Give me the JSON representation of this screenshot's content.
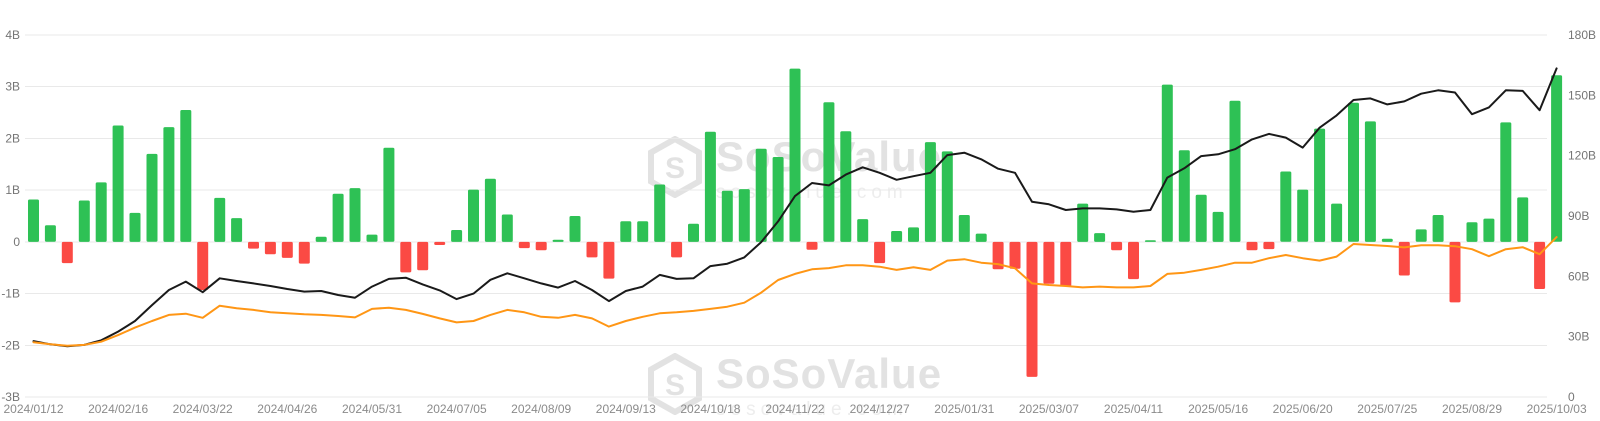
{
  "watermark": {
    "brand": "SoSoValue",
    "domain": "sosovalue.com"
  },
  "chart_data": {
    "type": "bar",
    "title": "",
    "xlabel": "",
    "ylabel": "",
    "grid": true,
    "legend_position": "none",
    "x_tick_every": 5,
    "x_tick_labels": [
      "2024/01/12",
      "2024/02/16",
      "2024/03/22",
      "2024/04/26",
      "2024/05/31",
      "2024/07/05",
      "2024/08/09",
      "2024/09/13",
      "2024/10/18",
      "2024/11/22",
      "2024/12/27",
      "2025/01/31",
      "2025/03/07",
      "2025/04/11",
      "2025/05/16",
      "2025/06/20",
      "2025/07/25",
      "2025/08/29",
      "2025/10/03"
    ],
    "left_axis": {
      "min": -3,
      "max": 4,
      "tick_values": [
        4,
        3,
        2,
        1,
        0,
        -1,
        -2,
        -3
      ],
      "tick_labels": [
        "4B",
        "3B",
        "2B",
        "1B",
        "0",
        "-1B",
        "-2B",
        "-3B"
      ]
    },
    "right_axis": {
      "min": 0,
      "max": 180,
      "tick_values": [
        180,
        150,
        120,
        90,
        60,
        30,
        0
      ],
      "tick_labels": [
        "180B",
        "150B",
        "120B",
        "90B",
        "60B",
        "30B",
        "0"
      ]
    },
    "bar_series": {
      "name": "weekly-net-flow",
      "unit": "B",
      "axis": "left",
      "positive_color": "#2ec155",
      "negative_color": "#fb4a44",
      "values": [
        0.82,
        0.32,
        -0.41,
        0.8,
        1.15,
        2.25,
        0.56,
        1.7,
        2.22,
        2.55,
        -0.93,
        0.85,
        0.46,
        -0.13,
        -0.24,
        -0.31,
        -0.42,
        0.1,
        0.93,
        1.04,
        0.14,
        1.82,
        -0.59,
        -0.55,
        -0.06,
        0.23,
        1.01,
        1.22,
        0.53,
        -0.12,
        -0.16,
        0.04,
        0.5,
        -0.3,
        -0.71,
        0.4,
        0.4,
        1.11,
        -0.3,
        0.35,
        2.13,
        0.99,
        1.02,
        1.8,
        1.64,
        3.35,
        -0.15,
        2.7,
        2.14,
        0.44,
        -0.41,
        0.21,
        0.28,
        1.93,
        1.75,
        0.52,
        0.16,
        -0.53,
        -0.52,
        -2.61,
        -0.81,
        -0.86,
        0.74,
        0.17,
        -0.16,
        -0.72,
        0.03,
        3.04,
        1.77,
        0.91,
        0.58,
        2.73,
        -0.16,
        -0.14,
        1.36,
        1.01,
        2.19,
        0.74,
        2.69,
        2.33,
        0.06,
        -0.65,
        0.24,
        0.52,
        -1.17,
        0.38,
        0.45,
        2.31,
        0.86,
        -0.91,
        3.22
      ]
    },
    "line_series": [
      {
        "name": "black-line",
        "color": "#1a1a1a",
        "axis": "right",
        "unit": "B",
        "values": [
          27.8,
          26.2,
          25.2,
          25.9,
          28.2,
          32.5,
          37.8,
          45.7,
          53.2,
          57.4,
          52.1,
          59.0,
          57.7,
          56.5,
          55.2,
          53.7,
          52.4,
          52.7,
          50.7,
          49.4,
          54.9,
          58.7,
          59.3,
          56.0,
          53.0,
          48.7,
          51.4,
          58.3,
          61.5,
          59.0,
          56.5,
          54.4,
          57.7,
          53.2,
          47.7,
          52.7,
          54.9,
          60.7,
          58.7,
          59.0,
          65.1,
          66.3,
          69.4,
          77.0,
          87.3,
          99.9,
          106.4,
          105.2,
          110.6,
          114.2,
          111.5,
          108.0,
          109.8,
          111.5,
          120.3,
          121.5,
          118.2,
          113.5,
          111.5,
          97.1,
          95.8,
          93.0,
          93.8,
          93.8,
          93.3,
          92.1,
          93.0,
          109.1,
          113.7,
          119.8,
          120.7,
          123.2,
          128.1,
          130.8,
          129.0,
          124.0,
          133.9,
          140.0,
          147.7,
          148.5,
          145.5,
          147.0,
          150.8,
          152.5,
          151.4,
          140.6,
          144.0,
          152.5,
          152.2,
          142.6,
          163.4
        ]
      },
      {
        "name": "orange-line",
        "color": "#ff9615",
        "axis": "right",
        "unit": "B",
        "values": [
          27.2,
          26.2,
          25.5,
          25.9,
          27.5,
          30.8,
          34.5,
          37.8,
          40.8,
          41.4,
          39.4,
          45.4,
          44.1,
          43.3,
          42.1,
          41.6,
          41.1,
          40.8,
          40.3,
          39.6,
          43.8,
          44.4,
          43.3,
          41.3,
          39.1,
          37.1,
          37.8,
          40.8,
          43.3,
          42.1,
          39.9,
          39.4,
          40.8,
          39.1,
          35.0,
          37.8,
          39.9,
          41.6,
          42.1,
          42.8,
          43.8,
          44.9,
          46.9,
          51.9,
          58.2,
          61.2,
          63.5,
          64.1,
          65.5,
          65.5,
          64.8,
          63.2,
          64.5,
          63.2,
          67.8,
          68.5,
          66.8,
          66.1,
          64.0,
          56.5,
          55.7,
          55.2,
          54.5,
          54.9,
          54.5,
          54.5,
          55.2,
          61.2,
          61.8,
          63.2,
          64.8,
          66.8,
          66.8,
          69.0,
          70.6,
          69.0,
          67.8,
          69.8,
          76.1,
          75.6,
          75.1,
          74.4,
          75.5,
          75.5,
          75.0,
          73.5,
          70.0,
          73.5,
          74.5,
          71.0,
          79.5
        ]
      }
    ],
    "style": {
      "grid_color": "#e9e9e9",
      "axis_text_color": "#757575",
      "date_text_color": "#8b8b8b",
      "background": "#ffffff"
    }
  }
}
